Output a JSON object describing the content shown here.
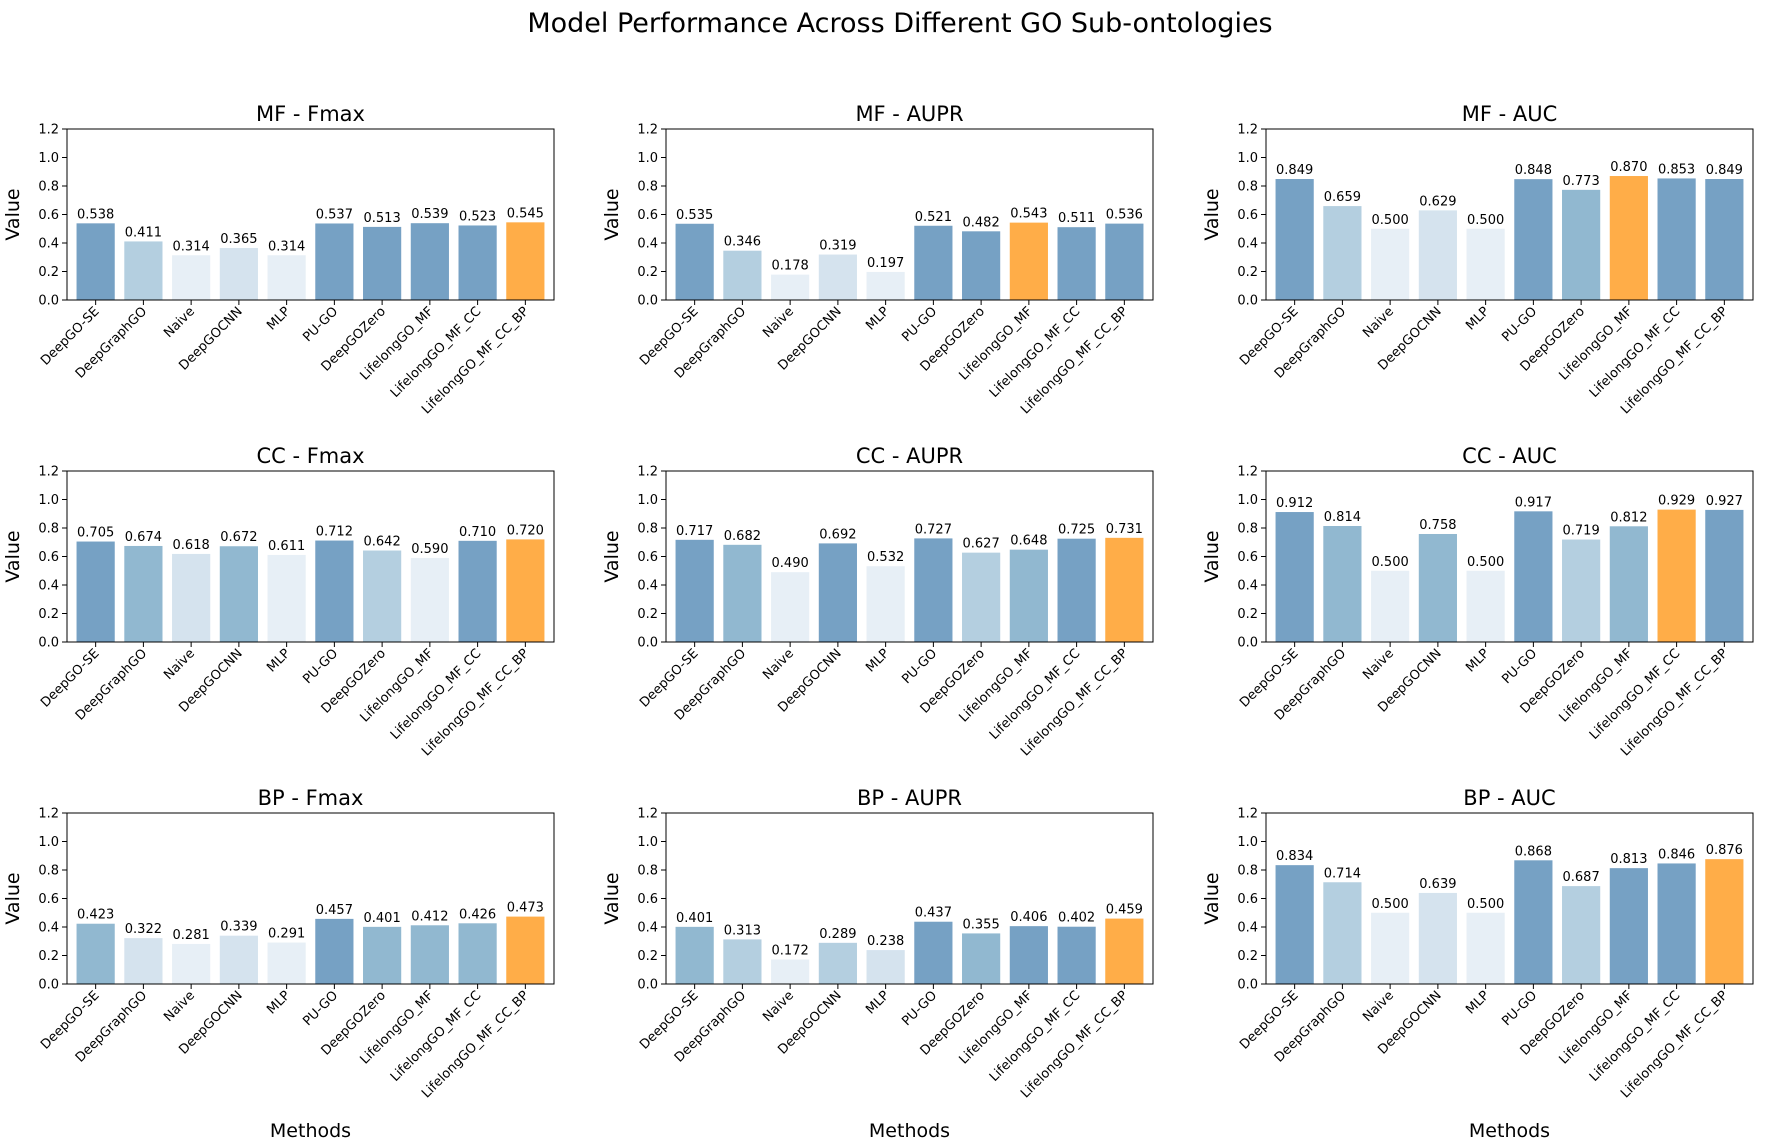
{
  "figure": {
    "title": "Model Performance Across Different GO Sub-ontologies"
  },
  "colors": {
    "highlight": "#ffad48",
    "shade_1": "#76a1c4",
    "shade_2": "#91b8d0",
    "shade_3": "#b4cfe0",
    "shade_4": "#d5e3ee",
    "shade_5": "#e7eff6"
  },
  "chart_data": [
    {
      "type": "bar",
      "title": "MF - Fmax",
      "xlabel": "",
      "ylabel": "Value",
      "ylim": [
        0,
        1.2
      ],
      "yticks": [
        0.0,
        0.2,
        0.4,
        0.6,
        0.8,
        1.0,
        1.2
      ],
      "categories": [
        "DeepGO-SE",
        "DeepGraphGO",
        "Naive",
        "DeepGOCNN",
        "MLP",
        "PU-GO",
        "DeepGOZero",
        "LifelongGO_MF",
        "LifelongGO_MF_CC",
        "LifelongGO_MF_CC_BP"
      ],
      "values": [
        0.538,
        0.411,
        0.314,
        0.365,
        0.314,
        0.537,
        0.513,
        0.539,
        0.523,
        0.545
      ],
      "labels": [
        "0.538",
        "0.411",
        "0.314",
        "0.365",
        "0.314",
        "0.537",
        "0.513",
        "0.539",
        "0.523",
        "0.545"
      ],
      "bar_colors": [
        "shade_1",
        "shade_3",
        "shade_5",
        "shade_4",
        "shade_5",
        "shade_1",
        "shade_1",
        "shade_1",
        "shade_1",
        "highlight"
      ]
    },
    {
      "type": "bar",
      "title": "MF - AUPR",
      "xlabel": "",
      "ylabel": "Value",
      "ylim": [
        0,
        1.2
      ],
      "yticks": [
        0.0,
        0.2,
        0.4,
        0.6,
        0.8,
        1.0,
        1.2
      ],
      "categories": [
        "DeepGO-SE",
        "DeepGraphGO",
        "Naive",
        "DeepGOCNN",
        "MLP",
        "PU-GO",
        "DeepGOZero",
        "LifelongGO_MF",
        "LifelongGO_MF_CC",
        "LifelongGO_MF_CC_BP"
      ],
      "values": [
        0.535,
        0.346,
        0.178,
        0.319,
        0.197,
        0.521,
        0.482,
        0.543,
        0.511,
        0.536
      ],
      "labels": [
        "0.535",
        "0.346",
        "0.178",
        "0.319",
        "0.197",
        "0.521",
        "0.482",
        "0.543",
        "0.511",
        "0.536"
      ],
      "bar_colors": [
        "shade_1",
        "shade_3",
        "shade_5",
        "shade_4",
        "shade_5",
        "shade_1",
        "shade_1",
        "highlight",
        "shade_1",
        "shade_1"
      ]
    },
    {
      "type": "bar",
      "title": "MF - AUC",
      "xlabel": "",
      "ylabel": "Value",
      "ylim": [
        0,
        1.2
      ],
      "yticks": [
        0.0,
        0.2,
        0.4,
        0.6,
        0.8,
        1.0,
        1.2
      ],
      "categories": [
        "DeepGO-SE",
        "DeepGraphGO",
        "Naive",
        "DeepGOCNN",
        "MLP",
        "PU-GO",
        "DeepGOZero",
        "LifelongGO_MF",
        "LifelongGO_MF_CC",
        "LifelongGO_MF_CC_BP"
      ],
      "values": [
        0.849,
        0.659,
        0.5,
        0.629,
        0.5,
        0.848,
        0.773,
        0.87,
        0.853,
        0.849
      ],
      "labels": [
        "0.849",
        "0.659",
        "0.500",
        "0.629",
        "0.500",
        "0.848",
        "0.773",
        "0.870",
        "0.853",
        "0.849"
      ],
      "bar_colors": [
        "shade_1",
        "shade_3",
        "shade_5",
        "shade_4",
        "shade_5",
        "shade_1",
        "shade_2",
        "highlight",
        "shade_1",
        "shade_1"
      ]
    },
    {
      "type": "bar",
      "title": "CC - Fmax",
      "xlabel": "",
      "ylabel": "Value",
      "ylim": [
        0,
        1.2
      ],
      "yticks": [
        0.0,
        0.2,
        0.4,
        0.6,
        0.8,
        1.0,
        1.2
      ],
      "categories": [
        "DeepGO-SE",
        "DeepGraphGO",
        "Naive",
        "DeepGOCNN",
        "MLP",
        "PU-GO",
        "DeepGOZero",
        "LifelongGO_MF",
        "LifelongGO_MF_CC",
        "LifelongGO_MF_CC_BP"
      ],
      "values": [
        0.705,
        0.674,
        0.618,
        0.672,
        0.611,
        0.712,
        0.642,
        0.59,
        0.71,
        0.72
      ],
      "labels": [
        "0.705",
        "0.674",
        "0.618",
        "0.672",
        "0.611",
        "0.712",
        "0.642",
        "0.590",
        "0.710",
        "0.720"
      ],
      "bar_colors": [
        "shade_1",
        "shade_2",
        "shade_4",
        "shade_2",
        "shade_5",
        "shade_1",
        "shade_3",
        "shade_5",
        "shade_1",
        "highlight"
      ]
    },
    {
      "type": "bar",
      "title": "CC - AUPR",
      "xlabel": "",
      "ylabel": "Value",
      "ylim": [
        0,
        1.2
      ],
      "yticks": [
        0.0,
        0.2,
        0.4,
        0.6,
        0.8,
        1.0,
        1.2
      ],
      "categories": [
        "DeepGO-SE",
        "DeepGraphGO",
        "Naive",
        "DeepGOCNN",
        "MLP",
        "PU-GO",
        "DeepGOZero",
        "LifelongGO_MF",
        "LifelongGO_MF_CC",
        "LifelongGO_MF_CC_BP"
      ],
      "values": [
        0.717,
        0.682,
        0.49,
        0.692,
        0.532,
        0.727,
        0.627,
        0.648,
        0.725,
        0.731
      ],
      "labels": [
        "0.717",
        "0.682",
        "0.490",
        "0.692",
        "0.532",
        "0.727",
        "0.627",
        "0.648",
        "0.725",
        "0.731"
      ],
      "bar_colors": [
        "shade_1",
        "shade_2",
        "shade_5",
        "shade_1",
        "shade_5",
        "shade_1",
        "shade_3",
        "shade_2",
        "shade_1",
        "highlight"
      ]
    },
    {
      "type": "bar",
      "title": "CC - AUC",
      "xlabel": "",
      "ylabel": "Value",
      "ylim": [
        0,
        1.2
      ],
      "yticks": [
        0.0,
        0.2,
        0.4,
        0.6,
        0.8,
        1.0,
        1.2
      ],
      "categories": [
        "DeepGO-SE",
        "DeepGraphGO",
        "Naive",
        "DeepGOCNN",
        "MLP",
        "PU-GO",
        "DeepGOZero",
        "LifelongGO_MF",
        "LifelongGO_MF_CC",
        "LifelongGO_MF_CC_BP"
      ],
      "values": [
        0.912,
        0.814,
        0.5,
        0.758,
        0.5,
        0.917,
        0.719,
        0.812,
        0.929,
        0.927
      ],
      "labels": [
        "0.912",
        "0.814",
        "0.500",
        "0.758",
        "0.500",
        "0.917",
        "0.719",
        "0.812",
        "0.929",
        "0.927"
      ],
      "bar_colors": [
        "shade_1",
        "shade_2",
        "shade_5",
        "shade_2",
        "shade_5",
        "shade_1",
        "shade_3",
        "shade_2",
        "highlight",
        "shade_1"
      ]
    },
    {
      "type": "bar",
      "title": "BP - Fmax",
      "xlabel": "Methods",
      "ylabel": "Value",
      "ylim": [
        0,
        1.2
      ],
      "yticks": [
        0.0,
        0.2,
        0.4,
        0.6,
        0.8,
        1.0,
        1.2
      ],
      "categories": [
        "DeepGO-SE",
        "DeepGraphGO",
        "Naive",
        "DeepGOCNN",
        "MLP",
        "PU-GO",
        "DeepGOZero",
        "LifelongGO_MF",
        "LifelongGO_MF_CC",
        "LifelongGO_MF_CC_BP"
      ],
      "values": [
        0.423,
        0.322,
        0.281,
        0.339,
        0.291,
        0.457,
        0.401,
        0.412,
        0.426,
        0.473
      ],
      "labels": [
        "0.423",
        "0.322",
        "0.281",
        "0.339",
        "0.291",
        "0.457",
        "0.401",
        "0.412",
        "0.426",
        "0.473"
      ],
      "bar_colors": [
        "shade_2",
        "shade_4",
        "shade_5",
        "shade_4",
        "shade_5",
        "shade_1",
        "shade_2",
        "shade_2",
        "shade_2",
        "highlight"
      ]
    },
    {
      "type": "bar",
      "title": "BP - AUPR",
      "xlabel": "Methods",
      "ylabel": "Value",
      "ylim": [
        0,
        1.2
      ],
      "yticks": [
        0.0,
        0.2,
        0.4,
        0.6,
        0.8,
        1.0,
        1.2
      ],
      "categories": [
        "DeepGO-SE",
        "DeepGraphGO",
        "Naive",
        "DeepGOCNN",
        "MLP",
        "PU-GO",
        "DeepGOZero",
        "LifelongGO_MF",
        "LifelongGO_MF_CC",
        "LifelongGO_MF_CC_BP"
      ],
      "values": [
        0.401,
        0.313,
        0.172,
        0.289,
        0.238,
        0.437,
        0.355,
        0.406,
        0.402,
        0.459
      ],
      "labels": [
        "0.401",
        "0.313",
        "0.172",
        "0.289",
        "0.238",
        "0.437",
        "0.355",
        "0.406",
        "0.402",
        "0.459"
      ],
      "bar_colors": [
        "shade_2",
        "shade_3",
        "shade_5",
        "shade_3",
        "shade_4",
        "shade_1",
        "shade_2",
        "shade_1",
        "shade_1",
        "highlight"
      ]
    },
    {
      "type": "bar",
      "title": "BP - AUC",
      "xlabel": "Methods",
      "ylabel": "Value",
      "ylim": [
        0,
        1.2
      ],
      "yticks": [
        0.0,
        0.2,
        0.4,
        0.6,
        0.8,
        1.0,
        1.2
      ],
      "categories": [
        "DeepGO-SE",
        "DeepGraphGO",
        "Naive",
        "DeepGOCNN",
        "MLP",
        "PU-GO",
        "DeepGOZero",
        "LifelongGO_MF",
        "LifelongGO_MF_CC",
        "LifelongGO_MF_CC_BP"
      ],
      "values": [
        0.834,
        0.714,
        0.5,
        0.639,
        0.5,
        0.868,
        0.687,
        0.813,
        0.846,
        0.876
      ],
      "labels": [
        "0.834",
        "0.714",
        "0.500",
        "0.639",
        "0.500",
        "0.868",
        "0.687",
        "0.813",
        "0.846",
        "0.876"
      ],
      "bar_colors": [
        "shade_1",
        "shade_3",
        "shade_5",
        "shade_4",
        "shade_5",
        "shade_1",
        "shade_3",
        "shade_1",
        "shade_1",
        "highlight"
      ]
    }
  ]
}
